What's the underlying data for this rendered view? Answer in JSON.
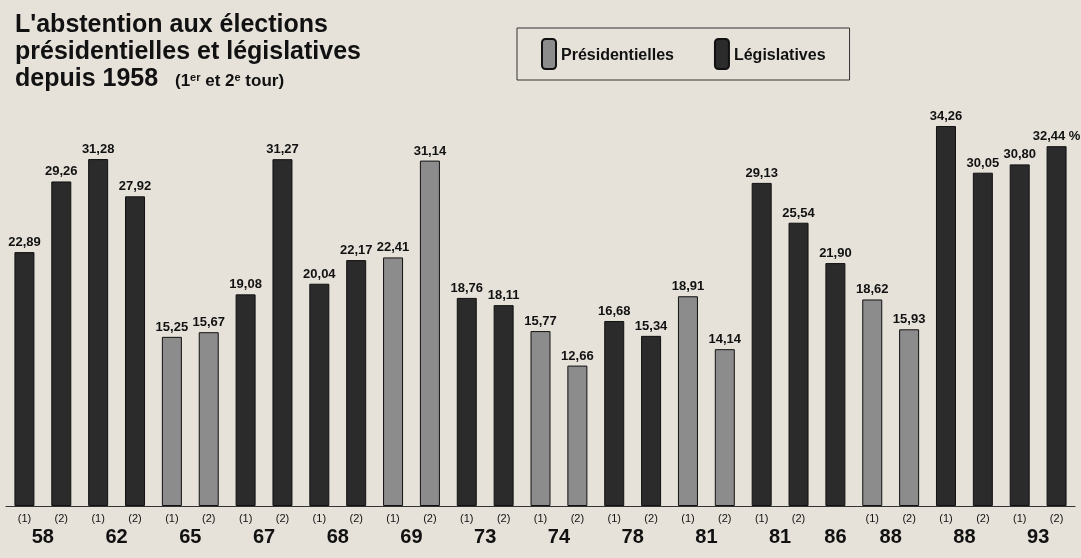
{
  "chart_data": {
    "type": "bar",
    "title": "L'abstention aux élections présidentielles et législatives depuis 1958",
    "subtitle": "(1$^{er}$ et 2$^{e}$ tour)",
    "categories": [
      "(1)",
      "(2)",
      "(1)",
      "(2)",
      "(1)",
      "(2)",
      "(1)",
      "(2)",
      "(1)",
      "(2)",
      "(1)",
      "(2)",
      "(1)",
      "(2)",
      "(1)",
      "(2)",
      "(1)",
      "(2)",
      "(1)",
      "(2)",
      "(1)",
      "(2)",
      null,
      "(1)",
      "(2)",
      "(1)",
      "(2)",
      "(1)",
      "(2)"
    ],
    "legend": "top",
    "grid": false,
    "series": [
      {
        "name": "Présidentielles",
        "color": "#8c8c8c",
        "values": [
          null,
          null,
          null,
          null,
          15.25,
          15.67,
          null,
          null,
          null,
          null,
          22.41,
          31.14,
          null,
          null,
          15.77,
          12.66,
          null,
          null,
          18.91,
          14.14,
          null,
          null,
          null,
          18.62,
          15.93,
          null,
          null,
          null,
          null
        ],
        "value_labels": [
          null,
          null,
          null,
          null,
          "15,25",
          "15,67",
          null,
          null,
          null,
          null,
          "22,41",
          "31,14",
          null,
          null,
          "15,77",
          "12,66",
          null,
          null,
          "18,91",
          "14,14",
          null,
          null,
          null,
          "18,62",
          "15,93",
          null,
          null,
          null,
          null
        ]
      },
      {
        "name": "Législatives",
        "color": "#2b2b2b",
        "values": [
          22.89,
          29.26,
          31.28,
          27.92,
          null,
          null,
          19.08,
          31.27,
          20.04,
          22.17,
          null,
          null,
          18.76,
          18.11,
          null,
          null,
          16.68,
          15.34,
          null,
          null,
          29.13,
          25.54,
          21.9,
          null,
          null,
          34.26,
          30.05,
          30.8,
          32.44
        ],
        "value_labels": [
          "22,89",
          "29,26",
          "31,28",
          "27,92",
          null,
          null,
          "19,08",
          "31,27",
          "20,04",
          "22,17",
          null,
          null,
          "18,76",
          "18,11",
          null,
          null,
          "16,68",
          "15,34",
          null,
          null,
          "29,13",
          "25,54",
          "21,90",
          null,
          null,
          "34,26",
          "30,05",
          "30,80",
          "32,44 %"
        ]
      }
    ],
    "annotations": [
      "58",
      "62",
      "65",
      "67",
      "68",
      "69",
      "73",
      "74",
      "78",
      "81",
      "81",
      "86",
      "88",
      "88",
      "93"
    ]
  }
}
